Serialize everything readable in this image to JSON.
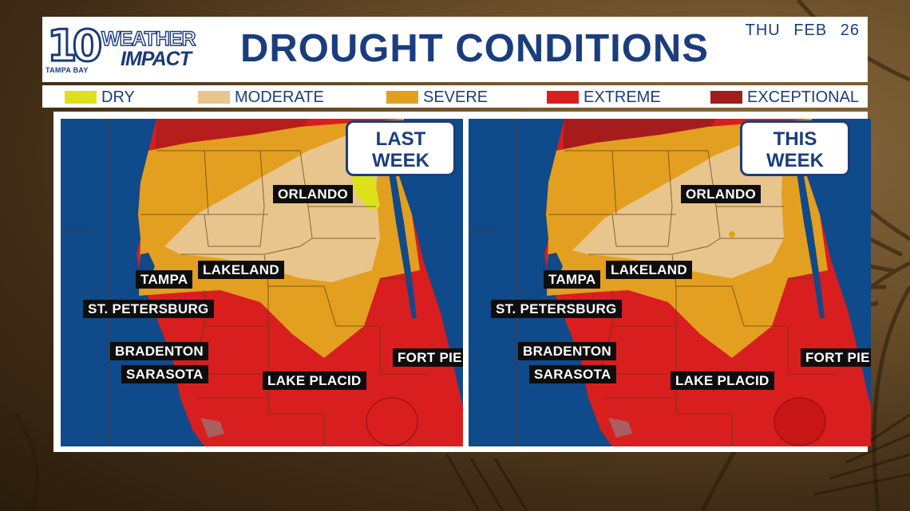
{
  "header": {
    "logo": {
      "number": "10",
      "word1": "WEATHER",
      "word2": "IMPACT",
      "station": "TAMPA BAY"
    },
    "title": "DROUGHT CONDITIONS",
    "date": "THU FEB 26"
  },
  "legend": [
    {
      "label": "DRY",
      "color": "#dde11c"
    },
    {
      "label": "MODERATE",
      "color": "#e8c58c"
    },
    {
      "label": "SEVERE",
      "color": "#e39f1f"
    },
    {
      "label": "EXTREME",
      "color": "#d81e1e"
    },
    {
      "label": "EXCEPTIONAL",
      "color": "#a11c1c"
    }
  ],
  "colors": {
    "water": "#0f4a8a",
    "dry": "#dde11c",
    "moderate": "#e8c58c",
    "severe": "#e39f1f",
    "extreme": "#d81e1e",
    "exceptional": "#a11c1c",
    "brand": "#1b3d7d"
  },
  "panels": [
    {
      "badge_line1": "LAST",
      "badge_line2": "WEEK",
      "cities": {
        "orlando": "ORLANDO",
        "lakeland": "LAKELAND",
        "tampa": "TAMPA",
        "st_petersburg": "ST. PETERSBURG",
        "bradenton": "BRADENTON",
        "sarasota": "SARASOTA",
        "lake_placid": "LAKE PLACID",
        "fort_pierce": "FORT PIE"
      }
    },
    {
      "badge_line1": "THIS",
      "badge_line2": "WEEK",
      "cities": {
        "orlando": "ORLANDO",
        "lakeland": "LAKELAND",
        "tampa": "TAMPA",
        "st_petersburg": "ST. PETERSBURG",
        "bradenton": "BRADENTON",
        "sarasota": "SARASOTA",
        "lake_placid": "LAKE PLACID",
        "fort_pierce": "FORT PIE"
      }
    }
  ]
}
